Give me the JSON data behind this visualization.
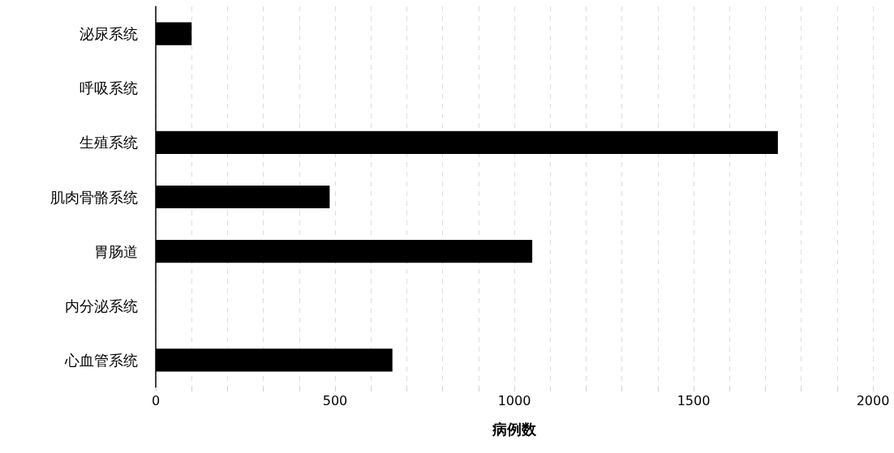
{
  "chart_data": {
    "type": "bar",
    "orientation": "horizontal",
    "xlabel": "病例数",
    "categories": [
      "泌尿系统",
      "呼吸系统",
      "生殖系统",
      "肌肉骨骼系统",
      "胃肠道",
      "内分泌系统",
      "心血管系统"
    ],
    "values": [
      100,
      null,
      1735,
      485,
      1050,
      null,
      660
    ],
    "color": "#000000",
    "xlim": [
      0,
      2000
    ],
    "xticks": [
      0,
      {
        "value": 100,
        "label": null
      },
      {
        "value": 200,
        "label": null
      },
      {
        "value": 300,
        "label": null
      },
      {
        "value": 400,
        "label": null
      },
      500,
      {
        "value": 600,
        "label": null
      },
      {
        "value": 700,
        "label": null
      },
      {
        "value": 800,
        "label": null
      },
      {
        "value": 900,
        "label": null
      },
      1000,
      {
        "value": 1100,
        "label": null
      },
      {
        "value": 1200,
        "label": null
      },
      {
        "value": 1300,
        "label": null
      },
      {
        "value": 1400,
        "label": null
      },
      1500,
      {
        "value": 1600,
        "label": null
      },
      {
        "value": 1700,
        "label": null
      },
      {
        "value": 1800,
        "label": null
      },
      {
        "value": 1900,
        "label": null
      },
      2000
    ],
    "grid": "x"
  }
}
